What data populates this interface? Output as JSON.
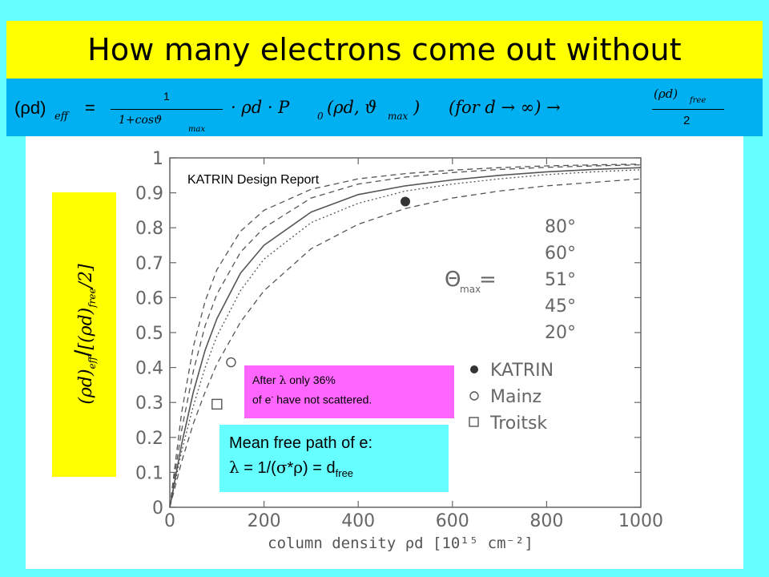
{
  "title": "How many electrons come out without",
  "formula": {
    "lhs": "(ρd)",
    "lhs_sub": "eff",
    "eq": "=",
    "frac_num": "1",
    "frac_den": "1+cosϑ",
    "frac_den_sub": "max",
    "body": "· ρd · P",
    "p_sub": "0",
    "args": "(ρd, ϑ",
    "args_sub": "max",
    "args_close": ")",
    "cond": "(for d → ∞) →",
    "rhs_num": "(ρd)",
    "rhs_num_sub": "free",
    "rhs_den": "2"
  },
  "y_axis_label": {
    "num": "(ρd)",
    "num_sub": "eff",
    "slash": "/",
    "den": "[(ρd)",
    "den_sub": "free",
    "den_end": "/2]"
  },
  "notes": {
    "lambda_line1_pre": "After ",
    "lambda_symbol": "λ",
    "lambda_line1_post": " only 36%",
    "lambda_line2_pre": "of e",
    "lambda_line2_sup": "-",
    "lambda_line2_post": " have not scattered."
  },
  "mean_free_path": {
    "line1": "Mean free path of e:",
    "lambda": "λ",
    "eq_text": " = 1/(",
    "sigma": "σ",
    "star": "*",
    "rho": "ρ",
    "close": ") = d",
    "sub": "free"
  },
  "colors": {
    "background": "#66FFFF",
    "title_bar": "#FFFF00",
    "formula_bar": "#00B0F0",
    "ylabel_box": "#FFFF00",
    "note_box": "#FF66FF",
    "mfp_box": "#66FFFF",
    "curve": "#555555"
  },
  "chart_data": {
    "type": "line",
    "source_label": "KATRIN Design Report",
    "xlabel": "column density ρd [10¹⁵ cm⁻²]",
    "xlim": [
      0,
      1000
    ],
    "ylim": [
      0,
      1
    ],
    "x_ticks": [
      "0",
      "200",
      "400",
      "600",
      "800",
      "1000"
    ],
    "y_ticks": [
      "0",
      "0.1",
      "0.2",
      "0.3",
      "0.4",
      "0.5",
      "0.6",
      "0.7",
      "0.8",
      "0.9",
      "1"
    ],
    "theta_legend_symbol": "Θ",
    "theta_legend_sub": "max",
    "theta_legend_eq": "=",
    "series": [
      {
        "name": "80°",
        "style": "dashed",
        "x": [
          0,
          25,
          50,
          75,
          100,
          150,
          200,
          300,
          400,
          500,
          600,
          700,
          800,
          900,
          1000
        ],
        "y": [
          0,
          0.27,
          0.46,
          0.59,
          0.68,
          0.79,
          0.85,
          0.91,
          0.94,
          0.955,
          0.965,
          0.972,
          0.977,
          0.98,
          0.982
        ]
      },
      {
        "name": "60°",
        "style": "dashed",
        "x": [
          0,
          25,
          50,
          75,
          100,
          150,
          200,
          300,
          400,
          500,
          600,
          700,
          800,
          900,
          1000
        ],
        "y": [
          0,
          0.22,
          0.39,
          0.52,
          0.61,
          0.73,
          0.8,
          0.885,
          0.925,
          0.945,
          0.958,
          0.967,
          0.973,
          0.977,
          0.98
        ]
      },
      {
        "name": "51°",
        "style": "solid",
        "x": [
          0,
          25,
          50,
          75,
          100,
          150,
          200,
          300,
          400,
          500,
          600,
          700,
          800,
          900,
          1000
        ],
        "y": [
          0,
          0.18,
          0.33,
          0.45,
          0.54,
          0.67,
          0.75,
          0.845,
          0.895,
          0.92,
          0.937,
          0.95,
          0.96,
          0.967,
          0.972
        ]
      },
      {
        "name": "45°",
        "style": "dotted",
        "x": [
          0,
          25,
          50,
          75,
          100,
          150,
          200,
          300,
          400,
          500,
          600,
          700,
          800,
          900,
          1000
        ],
        "y": [
          0,
          0.16,
          0.29,
          0.4,
          0.49,
          0.62,
          0.71,
          0.815,
          0.87,
          0.905,
          0.925,
          0.94,
          0.952,
          0.96,
          0.966
        ]
      },
      {
        "name": "20°",
        "style": "dashed",
        "x": [
          0,
          25,
          50,
          75,
          100,
          150,
          200,
          300,
          400,
          500,
          600,
          700,
          800,
          900,
          1000
        ],
        "y": [
          0,
          0.13,
          0.24,
          0.33,
          0.41,
          0.53,
          0.62,
          0.74,
          0.81,
          0.855,
          0.885,
          0.905,
          0.92,
          0.93,
          0.94
        ]
      }
    ],
    "points": [
      {
        "name": "KATRIN",
        "marker": "filled-circle",
        "x": 500,
        "y": 0.875
      },
      {
        "name": "Mainz",
        "marker": "open-circle",
        "x": 130,
        "y": 0.415
      },
      {
        "name": "Troitsk",
        "marker": "open-square",
        "x": 100,
        "y": 0.295
      }
    ]
  }
}
